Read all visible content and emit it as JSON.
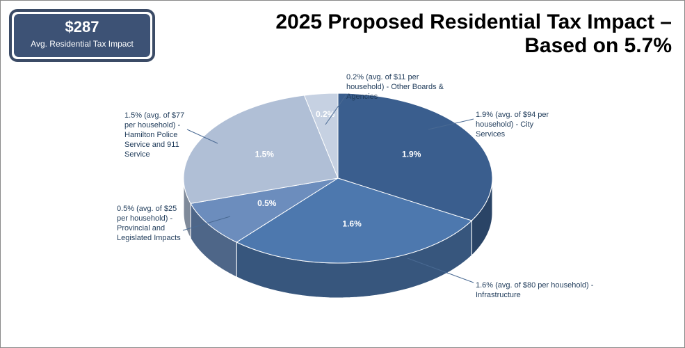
{
  "badge": {
    "value": "$287",
    "label": "Avg. Residential Tax Impact"
  },
  "chart_data": {
    "type": "pie",
    "title": "2025 Proposed Residential Tax Impact – Based on 5.7%",
    "categories": [
      "1.9% (avg. of $94 per household) - City Services",
      "1.6% (avg. of $80 per household) - Infrastructure",
      "0.5% (avg. of $25 per household) - Provincial and Legislated Impacts",
      "1.5% (avg. of $77 per household) - Hamilton Police Service and 911 Service",
      "0.2% (avg. of $11 per household) - Other Boards & Agencies"
    ],
    "values": [
      1.9,
      1.6,
      0.5,
      1.5,
      0.2
    ],
    "value_labels": [
      "1.9%",
      "1.6%",
      "0.5%",
      "1.5%",
      "0.2%"
    ],
    "colors": [
      "#3a5e8e",
      "#4d78ae",
      "#6c8dbd",
      "#b0bfd6",
      "#c6d1e2"
    ]
  }
}
